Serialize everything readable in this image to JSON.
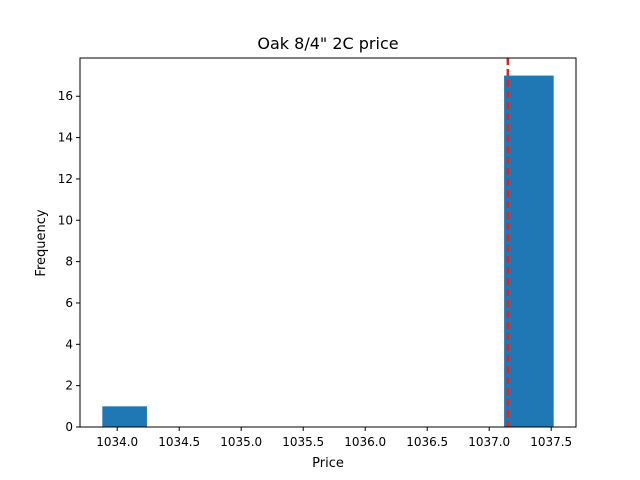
{
  "chart_data": {
    "type": "bar",
    "title": "Oak 8/4\" 2C price",
    "xlabel": "Price",
    "ylabel": "Frequency",
    "xlim": [
      1033.7,
      1037.7
    ],
    "ylim": [
      0,
      17.85
    ],
    "x_ticks": [
      {
        "value": 1034.0,
        "label": "1034.0"
      },
      {
        "value": 1034.5,
        "label": "1034.5"
      },
      {
        "value": 1035.0,
        "label": "1035.0"
      },
      {
        "value": 1035.5,
        "label": "1035.5"
      },
      {
        "value": 1036.0,
        "label": "1036.0"
      },
      {
        "value": 1036.5,
        "label": "1036.5"
      },
      {
        "value": 1037.0,
        "label": "1037.0"
      },
      {
        "value": 1037.5,
        "label": "1037.5"
      }
    ],
    "y_ticks": [
      {
        "value": 0,
        "label": "0"
      },
      {
        "value": 2,
        "label": "2"
      },
      {
        "value": 4,
        "label": "4"
      },
      {
        "value": 6,
        "label": "6"
      },
      {
        "value": 8,
        "label": "8"
      },
      {
        "value": 10,
        "label": "10"
      },
      {
        "value": 12,
        "label": "12"
      },
      {
        "value": 14,
        "label": "14"
      },
      {
        "value": 16,
        "label": "16"
      }
    ],
    "bins": [
      {
        "start": 1033.88,
        "end": 1034.24,
        "count": 1
      },
      {
        "start": 1034.24,
        "end": 1034.6,
        "count": 0
      },
      {
        "start": 1034.6,
        "end": 1034.96,
        "count": 0
      },
      {
        "start": 1034.96,
        "end": 1035.32,
        "count": 0
      },
      {
        "start": 1035.32,
        "end": 1035.68,
        "count": 0
      },
      {
        "start": 1035.68,
        "end": 1036.04,
        "count": 0
      },
      {
        "start": 1036.04,
        "end": 1036.4,
        "count": 0
      },
      {
        "start": 1036.4,
        "end": 1036.76,
        "count": 0
      },
      {
        "start": 1036.76,
        "end": 1037.12,
        "count": 0
      },
      {
        "start": 1037.12,
        "end": 1037.52,
        "count": 17
      }
    ],
    "reference_line": {
      "x": 1037.15,
      "style": "dashed"
    },
    "grid": false,
    "colors": {
      "bar": "#1f77b4",
      "reference_line": "#d62728"
    }
  }
}
